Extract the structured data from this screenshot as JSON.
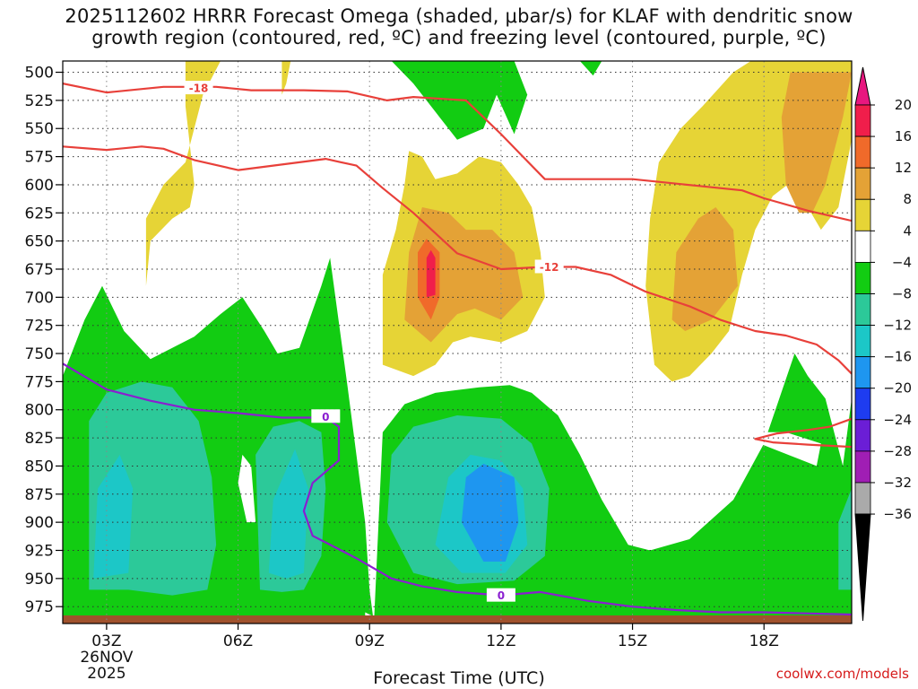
{
  "title_line1": "2025112602 HRRR Forecast Omega (shaded, μbar/s) for KLAF with dendritic snow",
  "title_line2": "growth region (contoured, red, ºC) and freezing level (contoured, purple, ºC)",
  "credit": "coolwx.com/models",
  "chart_data": {
    "type": "heatmap",
    "title": "2025112602 HRRR Forecast Omega (shaded, μbar/s) for KLAF with dendritic snow growth region (contoured, red, ºC) and freezing level (contoured, purple, ºC)",
    "xlabel": "Forecast Time (UTC)",
    "ylabel": "",
    "x_range_hours": [
      2,
      20
    ],
    "x_ticks": [
      {
        "hour": 3,
        "label": "03Z",
        "sub1": "26NOV",
        "sub2": "2025"
      },
      {
        "hour": 6,
        "label": "06Z"
      },
      {
        "hour": 9,
        "label": "09Z"
      },
      {
        "hour": 12,
        "label": "12Z"
      },
      {
        "hour": 15,
        "label": "15Z"
      },
      {
        "hour": 18,
        "label": "18Z"
      }
    ],
    "y_range_hpa": [
      990,
      490
    ],
    "y_ticks": [
      500,
      525,
      550,
      575,
      600,
      625,
      650,
      675,
      700,
      725,
      750,
      775,
      800,
      825,
      850,
      875,
      900,
      925,
      950,
      975
    ],
    "grid": true,
    "colorbar": {
      "levels": [
        {
          "label": "20",
          "color": "#f01e4b"
        },
        {
          "label": "16",
          "color": "#f06a2a"
        },
        {
          "label": "12",
          "color": "#e4a236"
        },
        {
          "label": "8",
          "color": "#e6d436"
        },
        {
          "label": "4",
          "color": "#ffffff"
        },
        {
          "label": "−4",
          "color": "#12cc12"
        },
        {
          "label": "−8",
          "color": "#2cc999"
        },
        {
          "label": "−12",
          "color": "#1cc7c7"
        },
        {
          "label": "−16",
          "color": "#1e96f0"
        },
        {
          "label": "−20",
          "color": "#1e3cf0"
        },
        {
          "label": "−24",
          "color": "#6b1ed6"
        },
        {
          "label": "−28",
          "color": "#a01eb4"
        },
        {
          "label": "−32",
          "color": "#aaaaaa"
        },
        {
          "label": "−36",
          "color": "#000000"
        }
      ],
      "top_arrow_color": "#e8177f",
      "bottom_arrow_color": "#000000"
    },
    "omega_regions": [
      {
        "name": "upward-region-pre09z",
        "level": "-4",
        "approx_hours": [
          2,
          8.8
        ],
        "approx_hpa": [
          680,
          990
        ]
      },
      {
        "name": "upward-core-pre09z",
        "level": "-8",
        "approx_hours": [
          2.6,
          8.1
        ],
        "approx_hpa": [
          770,
          965
        ]
      },
      {
        "name": "upward-region-post09z",
        "level": "-4",
        "approx_hours": [
          9.2,
          20
        ],
        "approx_hpa": [
          690,
          990
        ]
      },
      {
        "name": "upward-core-12z",
        "level": "-16",
        "approx_hours": [
          11,
          12.4
        ],
        "approx_hpa": [
          860,
          940
        ]
      },
      {
        "name": "downward-region-10z",
        "level": "8",
        "approx_hours": [
          9.8,
          12.9
        ],
        "approx_hpa": [
          570,
          760
        ]
      },
      {
        "name": "downward-core-10z",
        "level": "16",
        "approx_hours": [
          10.2,
          10.6
        ],
        "approx_hpa": [
          655,
          700
        ]
      },
      {
        "name": "downward-region-18z",
        "level": "8",
        "approx_hours": [
          15.3,
          20
        ],
        "approx_hpa": [
          500,
          780
        ]
      }
    ],
    "dendritic_contours": [
      {
        "label": "-18",
        "color": "#e8403a",
        "points": [
          [
            2,
            510
          ],
          [
            3,
            518
          ],
          [
            4.3,
            513
          ],
          [
            5.5,
            513
          ],
          [
            6.3,
            516
          ],
          [
            7.5,
            516
          ],
          [
            8.5,
            517
          ],
          [
            9.4,
            525
          ],
          [
            10,
            522
          ],
          [
            11.2,
            525
          ],
          [
            12,
            555
          ],
          [
            12.5,
            575
          ],
          [
            13,
            595
          ],
          [
            14,
            595
          ],
          [
            15,
            595
          ],
          [
            16.5,
            601
          ],
          [
            17.5,
            605
          ],
          [
            18,
            612
          ],
          [
            19,
            623
          ],
          [
            20,
            632
          ]
        ]
      },
      {
        "label": "-12",
        "color": "#e8403a",
        "points": [
          [
            2,
            566
          ],
          [
            3,
            569
          ],
          [
            3.8,
            566
          ],
          [
            4.3,
            568
          ],
          [
            5,
            578
          ],
          [
            6,
            587
          ],
          [
            7,
            582
          ],
          [
            8,
            577
          ],
          [
            8.7,
            583
          ],
          [
            9.3,
            603
          ],
          [
            10,
            625
          ],
          [
            11,
            661
          ],
          [
            12,
            675
          ],
          [
            13,
            673
          ],
          [
            13.7,
            673
          ],
          [
            14.5,
            680
          ],
          [
            15.3,
            695
          ],
          [
            16.3,
            708
          ],
          [
            17,
            720
          ],
          [
            17.8,
            730
          ],
          [
            18.5,
            734
          ],
          [
            19.2,
            742
          ],
          [
            19.7,
            756
          ],
          [
            20,
            768
          ]
        ]
      },
      {
        "label": "-12",
        "color": "#e8403a",
        "points": [
          [
            20,
            808
          ],
          [
            19.5,
            815
          ],
          [
            19,
            818
          ],
          [
            18.3,
            821
          ],
          [
            17.8,
            826
          ],
          [
            18.2,
            829
          ],
          [
            19,
            831
          ],
          [
            20,
            833
          ]
        ]
      }
    ],
    "freezing_contour": {
      "label": "0",
      "color": "#8a1ed0",
      "points": [
        [
          2,
          759
        ],
        [
          3,
          782
        ],
        [
          4,
          792
        ],
        [
          5,
          800
        ],
        [
          6,
          803
        ],
        [
          7,
          807
        ],
        [
          8,
          807
        ],
        [
          8.3,
          815
        ],
        [
          8.3,
          845
        ],
        [
          7.7,
          865
        ],
        [
          7.5,
          890
        ],
        [
          7.7,
          912
        ],
        [
          8.7,
          932
        ],
        [
          9.5,
          950
        ],
        [
          10.2,
          957
        ],
        [
          11,
          962
        ],
        [
          12,
          965
        ],
        [
          12.9,
          962
        ],
        [
          14,
          970
        ],
        [
          15,
          975
        ],
        [
          16,
          978
        ],
        [
          17,
          980
        ],
        [
          18,
          980
        ],
        [
          20,
          982
        ]
      ]
    }
  }
}
